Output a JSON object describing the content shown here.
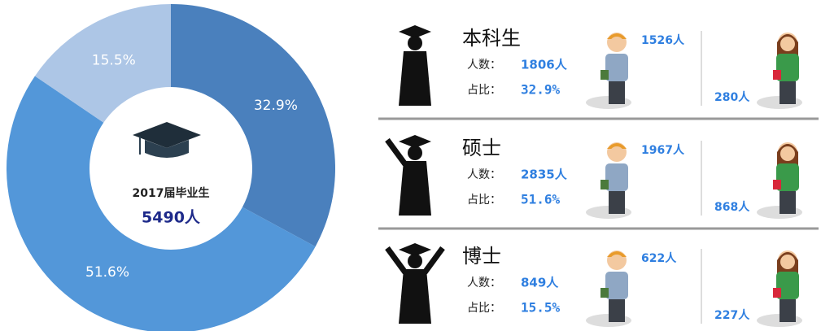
{
  "chart_data": {
    "type": "donut",
    "values": [
      32.9,
      51.6,
      15.5
    ],
    "value_labels": [
      "32.9%",
      "51.6%",
      "15.5%"
    ],
    "colors": [
      "#4a80bd",
      "#5397d9",
      "#adc6e6"
    ],
    "center_title": "2017届毕业生",
    "center_label": "5490人"
  },
  "labels": {
    "count": "人数：",
    "share": "占比："
  },
  "groups": [
    {
      "name": "本科生",
      "count": "1806人",
      "male": "1526人",
      "female": "280人"
    },
    {
      "name": "硕士",
      "count": "2835人",
      "male": "1967人",
      "female": "868人"
    },
    {
      "name": "博士",
      "count": "849人",
      "male": "622人",
      "female": "227人"
    }
  ]
}
